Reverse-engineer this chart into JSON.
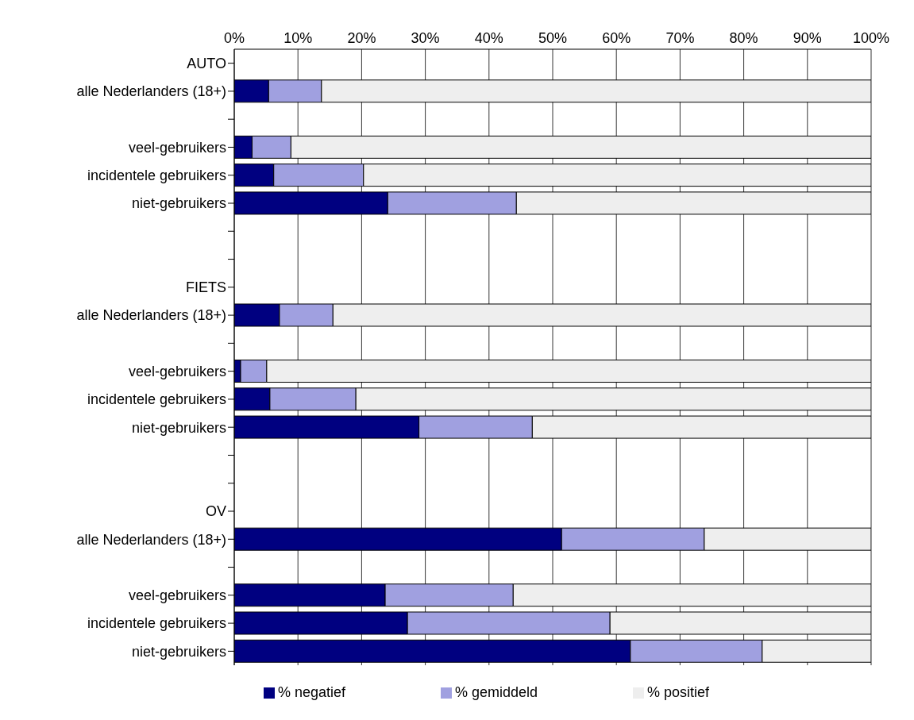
{
  "chart_data": {
    "type": "bar",
    "orientation": "horizontal",
    "stacked": true,
    "categories": [
      "AUTO",
      "alle Nederlanders (18+)",
      null,
      "veel-gebruikers",
      "incidentele gebruikers",
      "niet-gebruikers",
      null,
      null,
      "FIETS",
      "alle Nederlanders (18+)",
      null,
      "veel-gebruikers",
      "incidentele gebruikers",
      "niet-gebruikers",
      null,
      null,
      "OV",
      "alle Nederlanders (18+)",
      null,
      "veel-gebruikers",
      "incidentele gebruikers",
      "niet-gebruikers"
    ],
    "series": [
      {
        "name": "% negatief",
        "color": "#000080",
        "values": [
          null,
          5.4,
          null,
          2.8,
          6.2,
          24.1,
          null,
          null,
          null,
          7.1,
          null,
          1.0,
          5.6,
          29.0,
          null,
          null,
          null,
          51.4,
          null,
          23.7,
          27.2,
          62.2
        ]
      },
      {
        "name": "% gemiddeld",
        "color": "#a0a0e0",
        "values": [
          null,
          8.3,
          null,
          6.1,
          14.1,
          20.2,
          null,
          null,
          null,
          8.4,
          null,
          4.1,
          13.5,
          17.8,
          null,
          null,
          null,
          22.4,
          null,
          20.1,
          31.8,
          20.7
        ]
      },
      {
        "name": "% positief",
        "color": "#eeeeee",
        "values": [
          null,
          86.3,
          null,
          91.1,
          79.7,
          55.7,
          null,
          null,
          null,
          84.5,
          null,
          94.9,
          80.9,
          53.2,
          null,
          null,
          null,
          26.2,
          null,
          56.2,
          41.0,
          17.1
        ]
      }
    ],
    "xlim": [
      0,
      100
    ],
    "xticks": [
      {
        "value": 0,
        "label": "0%"
      },
      {
        "value": 10,
        "label": "10%"
      },
      {
        "value": 20,
        "label": "20%"
      },
      {
        "value": 30,
        "label": "30%"
      },
      {
        "value": 40,
        "label": "40%"
      },
      {
        "value": 50,
        "label": "50%"
      },
      {
        "value": 60,
        "label": "60%"
      },
      {
        "value": 70,
        "label": "70%"
      },
      {
        "value": 80,
        "label": "80%"
      },
      {
        "value": 90,
        "label": "90%"
      },
      {
        "value": 100,
        "label": "100%"
      }
    ],
    "grid": "x",
    "legend": "bottom"
  }
}
